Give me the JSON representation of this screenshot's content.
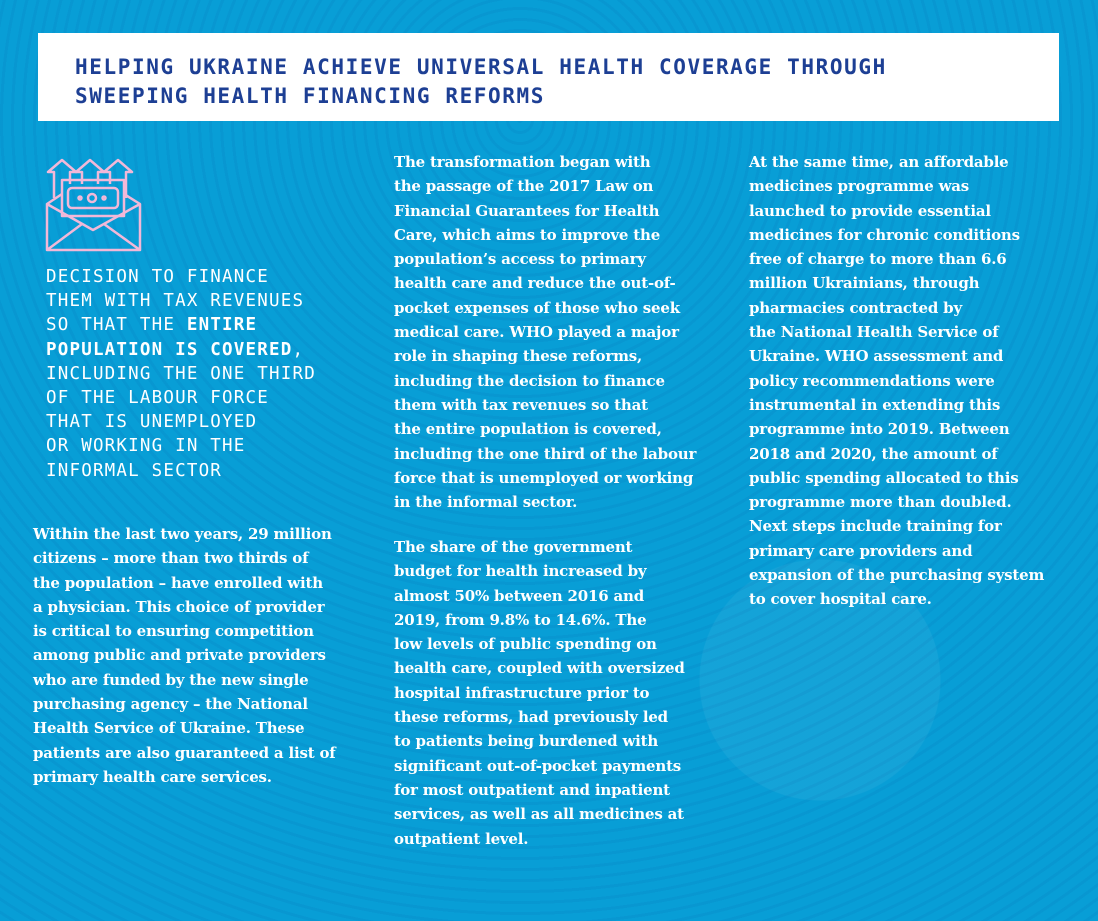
{
  "colors": {
    "background": "#089ed6",
    "title": "#1d3f94",
    "icon": "#f2b8d8"
  },
  "title": [
    "HELPING UKRAINE ACHIEVE UNIVERSAL HEALTH COVERAGE THROUGH",
    "SWEEPING HEALTH FINANCING REFORMS"
  ],
  "icon": "envelope-money-arrows-icon",
  "callout": {
    "before": [
      "DECISION TO FINANCE",
      "THEM WITH TAX REVENUES",
      "SO THAT THE "
    ],
    "bold1": "ENTIRE",
    "bold2": "POPULATION IS COVERED",
    "after": [
      ",",
      "INCLUDING THE ONE THIRD",
      "OF THE LABOUR FORCE",
      "THAT IS UNEMPLOYED",
      "OR WORKING IN THE",
      "INFORMAL SECTOR"
    ]
  },
  "col1": [
    "Within the last two years, 29 million",
    "citizens – more than two thirds of",
    "the population – have enrolled with",
    "a physician. This choice of provider",
    "is critical to ensuring competition",
    "among public and private providers",
    "who are funded by the new single",
    "purchasing agency – the National",
    "Health Service of Ukraine. These",
    "patients are also guaranteed a list of",
    "primary health care services."
  ],
  "col2a": [
    "The transformation began with",
    "the passage of the 2017 Law on",
    "Financial Guarantees for Health",
    "Care, which aims to improve the",
    "population’s access to primary",
    "health care and reduce the out-of-",
    "pocket expenses of those who seek",
    "medical care. WHO played a major",
    "role in shaping these reforms,",
    "including the decision to finance",
    "them with tax revenues so that",
    "the entire population is covered,",
    "including the one third of the labour",
    "force that is unemployed or working",
    "in the informal sector."
  ],
  "col2b": [
    "The share of the government",
    "budget for health increased by",
    "almost 50% between 2016 and",
    "2019, from 9.8% to 14.6%. The",
    "low levels of public spending on",
    "health care, coupled with oversized",
    "hospital infrastructure prior to",
    "these reforms, had previously led",
    "to patients being burdened with",
    "significant out-of-pocket payments",
    "for most outpatient and inpatient",
    "services, as well as all medicines at",
    "outpatient level."
  ],
  "col3": [
    "At the same time, an affordable",
    "medicines programme was",
    "launched to provide essential",
    "medicines for chronic conditions",
    "free of charge to more than 6.6",
    "million Ukrainians, through",
    "pharmacies contracted by",
    "the National Health Service of",
    "Ukraine. WHO assessment and",
    "policy recommendations were",
    "instrumental in extending this",
    "programme into 2019. Between",
    "2018 and 2020, the amount of",
    "public spending allocated to this",
    "programme more than doubled.",
    "Next steps include training for",
    "primary care providers and",
    "expansion of the purchasing system",
    "to cover hospital care."
  ]
}
